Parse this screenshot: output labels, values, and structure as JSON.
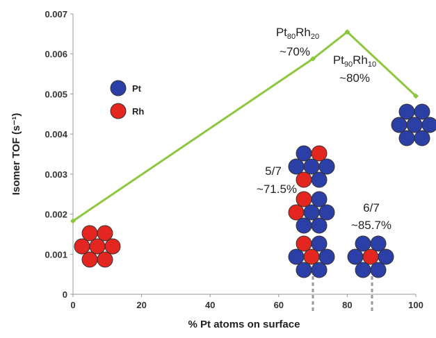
{
  "chart_data": {
    "type": "line",
    "x_label": "% Pt atoms on surface",
    "y_label": "Isomer TOF (s⁻¹)",
    "x": [
      0,
      70,
      80,
      100
    ],
    "series": [
      {
        "color": "#8dc63f",
        "values": [
          0.00183,
          0.00588,
          0.00655,
          0.00495
        ]
      }
    ],
    "xlim": [
      0,
      100
    ],
    "xticks": [
      0,
      20,
      40,
      60,
      80,
      100
    ],
    "ylim": [
      0,
      0.007
    ],
    "yticks": [
      0,
      0.001,
      0.002,
      0.003,
      0.004,
      0.005,
      0.006,
      0.007
    ],
    "legend": [
      {
        "name": "Pt",
        "color": "#2b3fa6"
      },
      {
        "name": "Rh",
        "color": "#e3261f"
      }
    ],
    "annotations": [
      {
        "formula": [
          "Pt",
          "80",
          "Rh",
          "20"
        ],
        "percent": "~70%"
      },
      {
        "formula": [
          "Pt",
          "90",
          "Rh",
          "10"
        ],
        "percent": "~80%"
      },
      {
        "fraction": "5/7",
        "percent": "~71.5%"
      },
      {
        "fraction": "6/7",
        "percent": "~85.7%"
      }
    ]
  }
}
